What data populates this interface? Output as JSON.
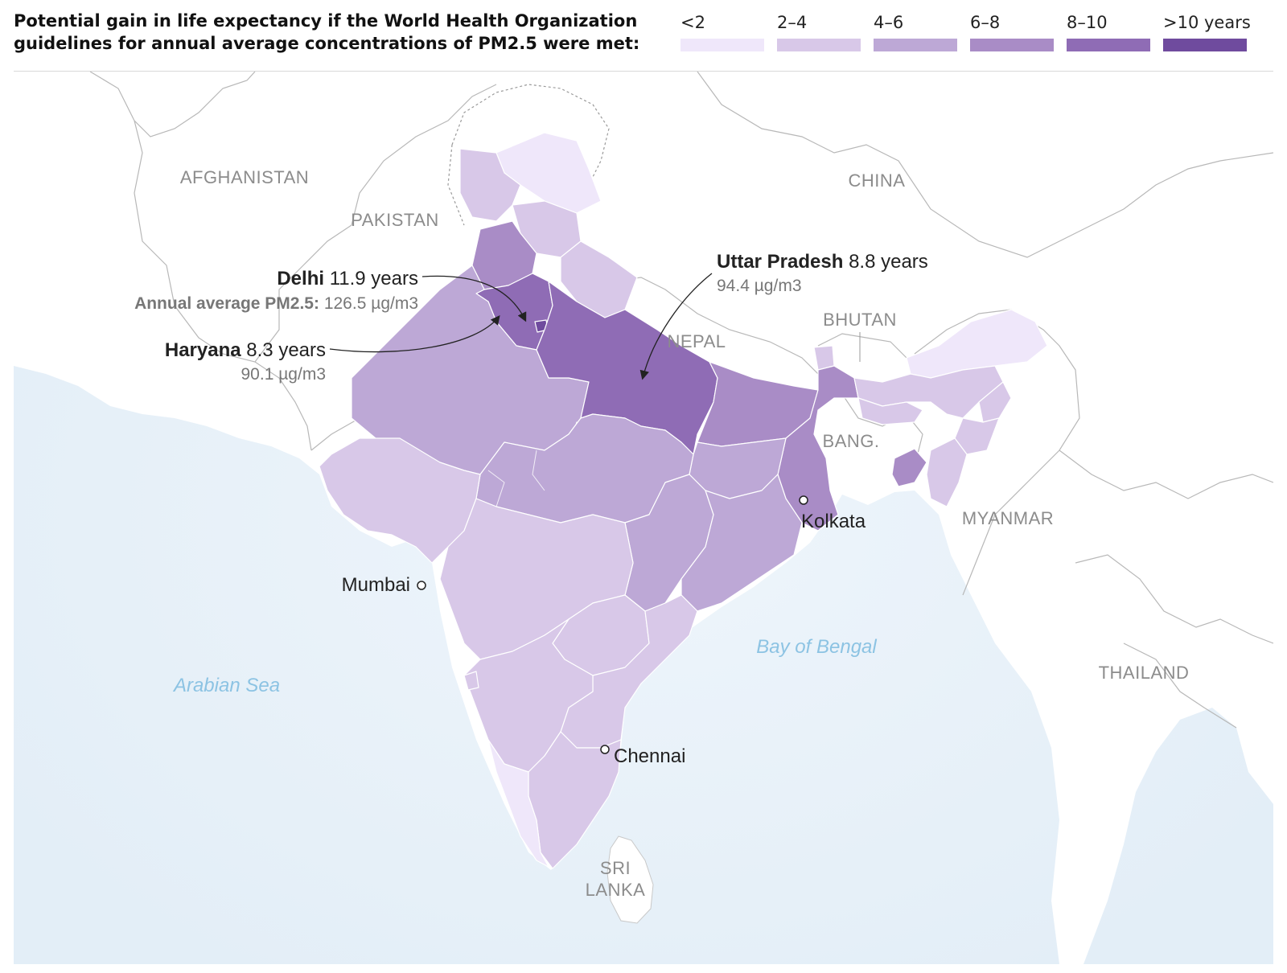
{
  "title": "Potential gain in life expectancy if the World Health Organization guidelines for annual average concentrations of PM2.5 were met:",
  "legend": [
    {
      "label": "<2",
      "color": "#efe7fa"
    },
    {
      "label": "2–4",
      "color": "#d8c8e8"
    },
    {
      "label": "4–6",
      "color": "#bda8d6"
    },
    {
      "label": "6–8",
      "color": "#a98cc6"
    },
    {
      "label": "8–10",
      "color": "#8f6cb5"
    },
    {
      "label": ">10 years",
      "color": "#6f4b9e"
    }
  ],
  "colors": {
    "sea": "#e6f0f8",
    "land": "#ffffff",
    "border": "#b5b5b5",
    "country_label": "#8c8c8c",
    "water_label": "#8cc3e3"
  },
  "countries": {
    "afghanistan": "AFGHANISTAN",
    "pakistan": "PAKISTAN",
    "china": "CHINA",
    "nepal": "NEPAL",
    "bhutan": "BHUTAN",
    "bangladesh": "BANG.",
    "myanmar": "MYANMAR",
    "thailand": "THAILAND",
    "sri_lanka_line1": "SRI",
    "sri_lanka_line2": "LANKA"
  },
  "water": {
    "arabian_sea": "Arabian Sea",
    "bay_of_bengal": "Bay of Bengal"
  },
  "cities": {
    "mumbai": "Mumbai",
    "kolkata": "Kolkata",
    "chennai": "Chennai"
  },
  "annotations": {
    "delhi": {
      "name": "Delhi",
      "years": "11.9 years",
      "pm_label": "Annual average PM2.5:",
      "pm_value": "126.5 µg/m3"
    },
    "haryana": {
      "name": "Haryana",
      "years": "8.3 years",
      "pm_value": "90.1 µg/m3"
    },
    "uttar_pradesh": {
      "name": "Uttar Pradesh",
      "years": "8.8 years",
      "pm_value": "94.4 µg/m3"
    }
  }
}
